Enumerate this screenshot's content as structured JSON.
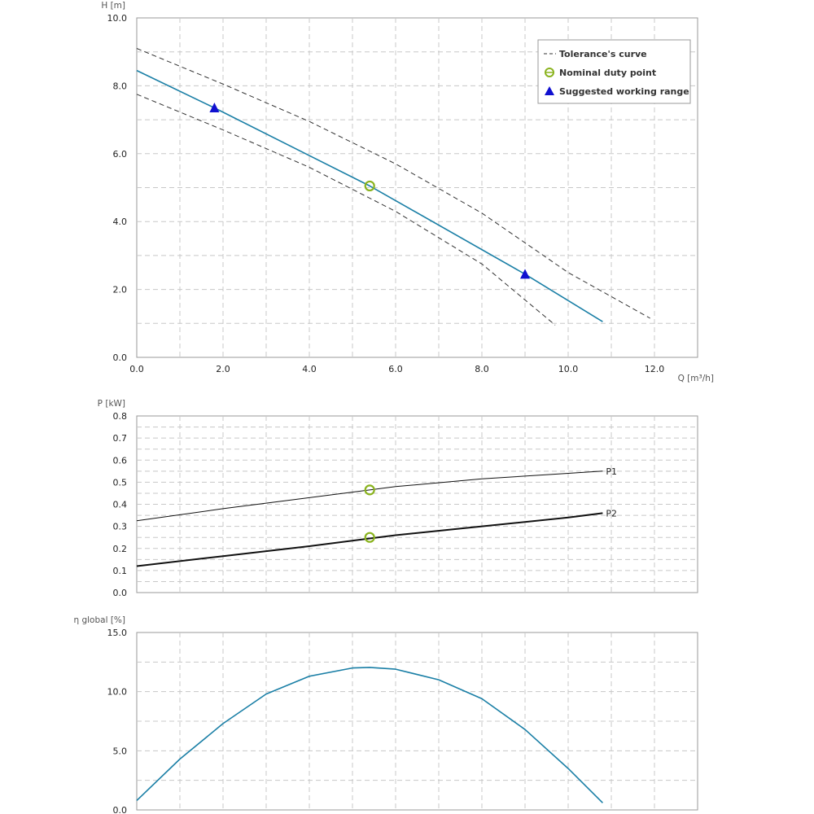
{
  "colors": {
    "curve": "#1a7fa6",
    "nominal": "#8ab31e",
    "range": "#1010d0",
    "tolerance": "#333333",
    "power": "#111111",
    "grid": "#c8c8c8"
  },
  "chart_data": [
    {
      "type": "line",
      "ylabel": "H [m]",
      "xlabel": "Q [m³/h]",
      "xlim": [
        0,
        13
      ],
      "ylim": [
        0,
        10
      ],
      "xticks": [
        "0.0",
        "2.0",
        "4.0",
        "6.0",
        "8.0",
        "10.0",
        "12.0"
      ],
      "yticks": [
        "0.0",
        "2.0",
        "4.0",
        "6.0",
        "8.0",
        "10.0"
      ],
      "grid": true,
      "legend_position": "top-right",
      "legend": [
        {
          "label": "Tolerance's curve",
          "symbol": "dashed-line"
        },
        {
          "label": "Nominal duty point",
          "symbol": "circle"
        },
        {
          "label": "Suggested working range",
          "symbol": "triangle"
        }
      ],
      "series": [
        {
          "name": "",
          "style": "solid",
          "x": [
            0,
            1.8,
            5.4,
            9.0,
            10.8
          ],
          "y": [
            8.45,
            7.35,
            5.05,
            2.45,
            1.05
          ]
        },
        {
          "name": "Tolerance's curve",
          "style": "dashed",
          "x": [
            0,
            2,
            4,
            6,
            8,
            10,
            11.9
          ],
          "y": [
            9.1,
            8.05,
            6.95,
            5.7,
            4.25,
            2.5,
            1.15
          ]
        },
        {
          "name": "Tolerance's curve",
          "style": "dashed",
          "x": [
            0,
            2,
            4,
            6,
            8,
            9.7
          ],
          "y": [
            7.75,
            6.7,
            5.6,
            4.3,
            2.75,
            0.95
          ]
        }
      ],
      "nominal_point": {
        "x": 5.4,
        "y": 5.05
      },
      "working_range": [
        {
          "x": 1.8,
          "y": 7.35
        },
        {
          "x": 9.0,
          "y": 2.45
        }
      ]
    },
    {
      "type": "line",
      "ylabel": "P [kW]",
      "xlim": [
        0,
        13
      ],
      "ylim": [
        0,
        0.8
      ],
      "yticks": [
        "0.0",
        "0.1",
        "0.2",
        "0.3",
        "0.4",
        "0.5",
        "0.6",
        "0.7",
        "0.8"
      ],
      "grid": true,
      "series": [
        {
          "name": "P1",
          "x": [
            0,
            2,
            4,
            5.4,
            6,
            8,
            10,
            10.8
          ],
          "y": [
            0.325,
            0.38,
            0.43,
            0.465,
            0.48,
            0.515,
            0.54,
            0.55
          ]
        },
        {
          "name": "P2",
          "x": [
            0,
            2,
            4,
            5.4,
            6,
            8,
            10,
            10.8
          ],
          "y": [
            0.12,
            0.165,
            0.21,
            0.245,
            0.26,
            0.3,
            0.34,
            0.36
          ]
        }
      ],
      "nominal_points": [
        {
          "x": 5.4,
          "y": 0.465
        },
        {
          "x": 5.4,
          "y": 0.25
        }
      ]
    },
    {
      "type": "line",
      "ylabel": "η global [%]",
      "xlim": [
        0,
        13
      ],
      "ylim": [
        0,
        15
      ],
      "yticks": [
        "0.0",
        "5.0",
        "10.0",
        "15.0"
      ],
      "grid": true,
      "series": [
        {
          "name": "",
          "x": [
            0,
            1,
            2,
            3,
            4,
            5,
            5.4,
            6,
            7,
            8,
            9,
            10,
            10.8
          ],
          "y": [
            0.8,
            4.3,
            7.3,
            9.8,
            11.3,
            12.0,
            12.05,
            11.9,
            11.0,
            9.4,
            6.8,
            3.5,
            0.6
          ]
        }
      ]
    }
  ]
}
